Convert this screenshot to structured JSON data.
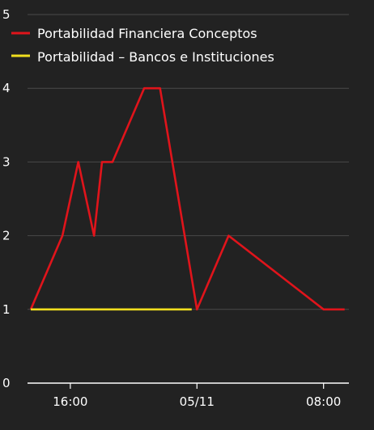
{
  "chart_data": {
    "type": "line",
    "background": "#222222",
    "grid": true,
    "grid_color": "#4a4a4a",
    "axis_color": "#ffffff",
    "legend_placement": "top-left",
    "ylim": [
      0,
      5
    ],
    "yticks": [
      0,
      1,
      2,
      3,
      4,
      5
    ],
    "x_domain": [
      "2015-11-04 13:30",
      "2015-11-05 09:30"
    ],
    "xticks": [
      {
        "t": "2015-11-04 16:00",
        "label": "16:00"
      },
      {
        "t": "2015-11-05 00:00",
        "label": "05/11"
      },
      {
        "t": "2015-11-05 08:00",
        "label": "08:00"
      }
    ],
    "series": [
      {
        "name": "Portabilidad Financiera Conceptos",
        "color": "#e0141b",
        "points": [
          [
            "2015-11-04 13:30",
            1
          ],
          [
            "2015-11-04 15:30",
            2
          ],
          [
            "2015-11-04 16:30",
            3
          ],
          [
            "2015-11-04 17:00",
            3
          ],
          [
            "2015-11-04 17:00",
            3
          ],
          [
            "2015-11-04 16:30",
            3
          ],
          [
            "2015-11-04 16:30",
            3
          ]
        ]
      },
      {
        "name": "Portabilidad – Bancos e Instituciones",
        "color": "#f0de1e",
        "points": [
          [
            "2015-11-04 13:30",
            1
          ],
          [
            "2015-11-04 23:40",
            1
          ]
        ]
      }
    ]
  }
}
